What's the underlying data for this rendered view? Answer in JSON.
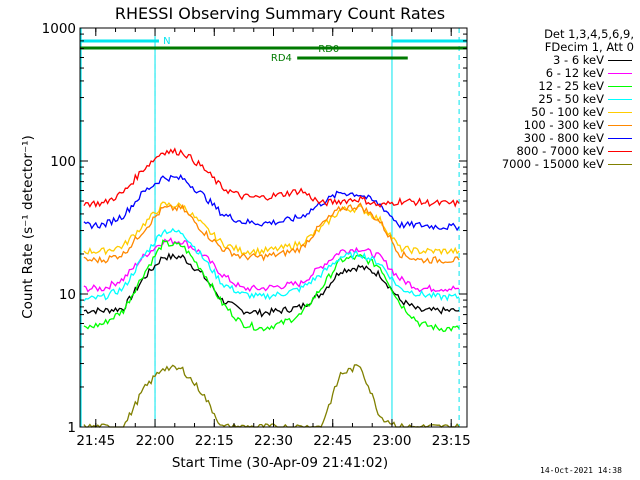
{
  "chart_data": {
    "type": "line",
    "title": "RHESSI Observing Summary Count Rates",
    "xlabel": "Start Time (30-Apr-09 21:41:02)",
    "ylabel": "Count Rate (s⁻¹ detector⁻¹)",
    "y_scale": "log",
    "ylim": [
      1,
      1000
    ],
    "xlim": [
      "21:41",
      "23:19"
    ],
    "x_ticks": [
      "21:45",
      "22:00",
      "22:15",
      "22:30",
      "22:45",
      "23:00",
      "23:15"
    ],
    "y_ticks": [
      "1",
      "10",
      "100",
      "1000"
    ],
    "grid": false,
    "legend_position": "right",
    "legend_header": [
      "Det 1,3,4,5,6,9,",
      "FDecim 1, Att 0"
    ],
    "x": [
      "21:42",
      "21:47",
      "21:52",
      "21:57",
      "22:02",
      "22:07",
      "22:12",
      "22:17",
      "22:22",
      "22:27",
      "22:32",
      "22:37",
      "22:42",
      "22:47",
      "22:52",
      "22:57",
      "23:02",
      "23:07",
      "23:12",
      "23:17"
    ],
    "series": [
      {
        "name": "3 - 6 keV",
        "color": "#000000",
        "values": [
          7.5,
          7.5,
          7.8,
          13,
          19,
          19,
          14,
          9,
          7.5,
          7.2,
          7.5,
          8,
          10,
          15,
          16,
          14,
          9,
          7.5,
          7.5,
          7.5
        ]
      },
      {
        "name": "6 - 12 keV",
        "color": "#ff00ff",
        "values": [
          11,
          11,
          13,
          19,
          25,
          25,
          20,
          14,
          11,
          11,
          11.5,
          12,
          16,
          21,
          22,
          19,
          13,
          11,
          11,
          11
        ]
      },
      {
        "name": "12 - 25 keV",
        "color": "#00ff00",
        "values": [
          5.5,
          6,
          7.5,
          14,
          24,
          23,
          15,
          8.5,
          6,
          5.5,
          6,
          7,
          11,
          18,
          19,
          16,
          8.5,
          6,
          5.5,
          5.5
        ]
      },
      {
        "name": "25 - 50 keV",
        "color": "#00ffff",
        "values": [
          9,
          9.5,
          11,
          19,
          30,
          29,
          19,
          12,
          10,
          9.5,
          10,
          11,
          14,
          19,
          20,
          17,
          11,
          10,
          9.5,
          9.5
        ]
      },
      {
        "name": "50 - 100 keV",
        "color": "#ffcc00",
        "values": [
          21,
          21,
          23,
          33,
          47,
          46,
          33,
          24,
          21,
          21,
          22,
          24,
          31,
          43,
          44,
          36,
          22,
          21,
          21,
          21
        ]
      },
      {
        "name": "100 - 300 keV",
        "color": "#ff8800",
        "values": [
          18,
          18,
          20,
          30,
          44,
          44,
          30,
          22,
          19,
          19,
          20,
          22,
          33,
          44,
          46,
          35,
          20,
          18,
          18,
          18
        ]
      },
      {
        "name": "300 - 800 keV",
        "color": "#0000ff",
        "values": [
          33,
          33,
          39,
          58,
          75,
          74,
          56,
          40,
          35,
          34,
          35,
          38,
          48,
          58,
          56,
          47,
          33,
          33,
          32,
          32
        ]
      },
      {
        "name": "800 - 7000 keV",
        "color": "#ff0000",
        "values": [
          48,
          48,
          58,
          87,
          118,
          117,
          90,
          63,
          54,
          53,
          56,
          60,
          48,
          50,
          52,
          46,
          50,
          49,
          48,
          48
        ]
      },
      {
        "name": "7000 - 15000 keV",
        "color": "#808000",
        "values": [
          1,
          1,
          1,
          1.9,
          2.8,
          2.7,
          1.8,
          1,
          1,
          1,
          1,
          1,
          1,
          2.5,
          2.9,
          1.2,
          1,
          1,
          1,
          1
        ]
      }
    ],
    "annotations": [
      "N",
      "RD0",
      "RD4"
    ]
  },
  "timestamp": "14-Oct-2021 14:38"
}
